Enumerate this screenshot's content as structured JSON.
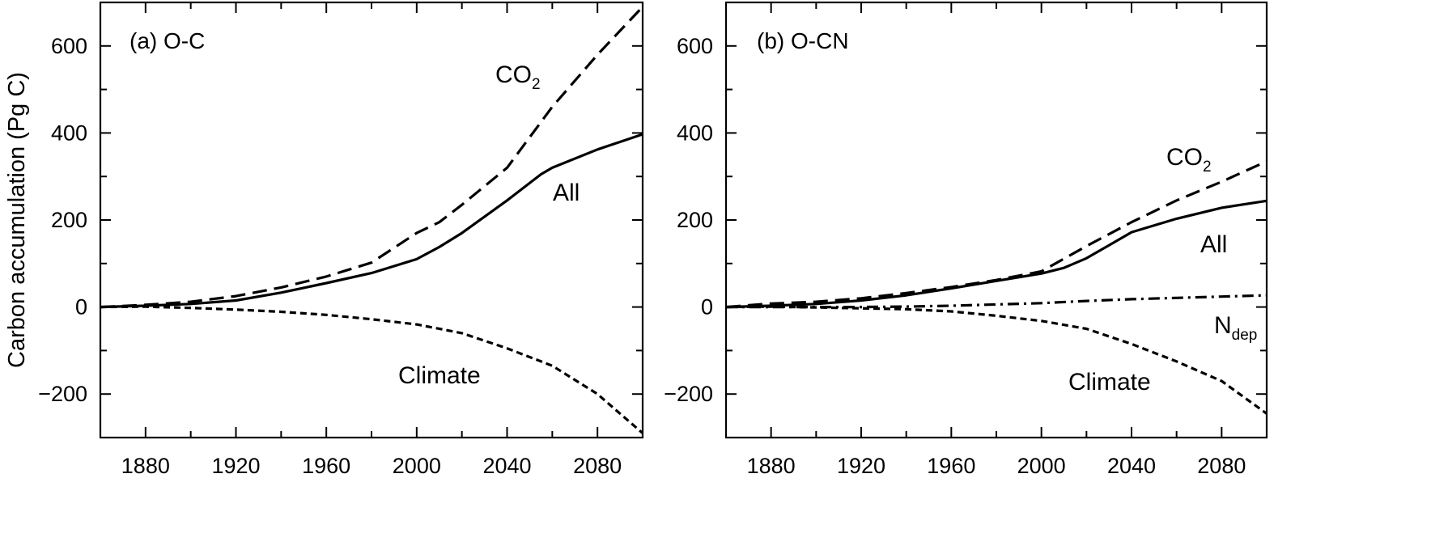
{
  "ylabel": "Carbon accumulation (Pg C)",
  "chart_data": [
    {
      "type": "line",
      "title": "(a) O-C",
      "xlim": [
        1860,
        2100
      ],
      "ylim": [
        -300,
        700
      ],
      "xticks": [
        1880,
        1920,
        1960,
        2000,
        2040,
        2080
      ],
      "yticks": [
        -200,
        0,
        200,
        400,
        600
      ],
      "ytick_labels": [
        "−200",
        "0",
        "200",
        "400",
        "600"
      ],
      "series": [
        {
          "label": "CO",
          "label_sub": "2",
          "style": "dashed",
          "x": [
            1860,
            1880,
            1900,
            1920,
            1940,
            1960,
            1980,
            2000,
            2010,
            2020,
            2040,
            2060,
            2080,
            2100
          ],
          "y": [
            0,
            5,
            12,
            25,
            45,
            70,
            102,
            170,
            195,
            235,
            320,
            460,
            580,
            690
          ]
        },
        {
          "label": "All",
          "style": "solid",
          "x": [
            1860,
            1880,
            1900,
            1920,
            1940,
            1960,
            1980,
            2000,
            2010,
            2020,
            2040,
            2055,
            2060,
            2080,
            2100
          ],
          "y": [
            0,
            3,
            7,
            15,
            33,
            55,
            78,
            110,
            138,
            170,
            245,
            305,
            320,
            362,
            397
          ]
        },
        {
          "label": "Climate",
          "style": "dotted",
          "x": [
            1860,
            1880,
            1900,
            1920,
            1940,
            1960,
            1980,
            2000,
            2020,
            2040,
            2060,
            2080,
            2100
          ],
          "y": [
            0,
            1,
            -2,
            -6,
            -11,
            -18,
            -28,
            -40,
            -60,
            -95,
            -135,
            -200,
            -290
          ]
        }
      ]
    },
    {
      "type": "line",
      "title": "(b) O-CN",
      "xlim": [
        1860,
        2100
      ],
      "ylim": [
        -300,
        700
      ],
      "xticks": [
        1880,
        1920,
        1960,
        2000,
        2040,
        2080
      ],
      "yticks": [
        -200,
        0,
        200,
        400,
        600
      ],
      "ytick_labels": [
        "−200",
        "0",
        "200",
        "400",
        "600"
      ],
      "series": [
        {
          "label": "CO",
          "label_sub": "2",
          "style": "dashed",
          "x": [
            1860,
            1880,
            1900,
            1920,
            1940,
            1960,
            1980,
            2000,
            2020,
            2040,
            2060,
            2080,
            2100
          ],
          "y": [
            0,
            8,
            12,
            20,
            32,
            46,
            62,
            82,
            140,
            195,
            245,
            288,
            335
          ]
        },
        {
          "label": "All",
          "style": "solid",
          "x": [
            1860,
            1880,
            1900,
            1920,
            1940,
            1960,
            1980,
            2000,
            2010,
            2020,
            2030,
            2040,
            2060,
            2080,
            2100
          ],
          "y": [
            0,
            3,
            7,
            15,
            27,
            43,
            60,
            77,
            90,
            112,
            142,
            172,
            203,
            228,
            244
          ]
        },
        {
          "label": "N",
          "label_sub": "dep",
          "style": "dashdot",
          "x": [
            1860,
            1880,
            1900,
            1920,
            1940,
            1960,
            1980,
            2000,
            2020,
            2040,
            2060,
            2080,
            2100
          ],
          "y": [
            0,
            0,
            0,
            0,
            1,
            3,
            6,
            9,
            14,
            18,
            21,
            24,
            27
          ]
        },
        {
          "label": "Climate",
          "style": "dotted",
          "x": [
            1860,
            1880,
            1900,
            1920,
            1940,
            1960,
            1980,
            2000,
            2020,
            2040,
            2060,
            2080,
            2100
          ],
          "y": [
            0,
            1,
            -1,
            -3,
            -5,
            -10,
            -20,
            -32,
            -50,
            -85,
            -125,
            -170,
            -245
          ]
        }
      ]
    }
  ]
}
